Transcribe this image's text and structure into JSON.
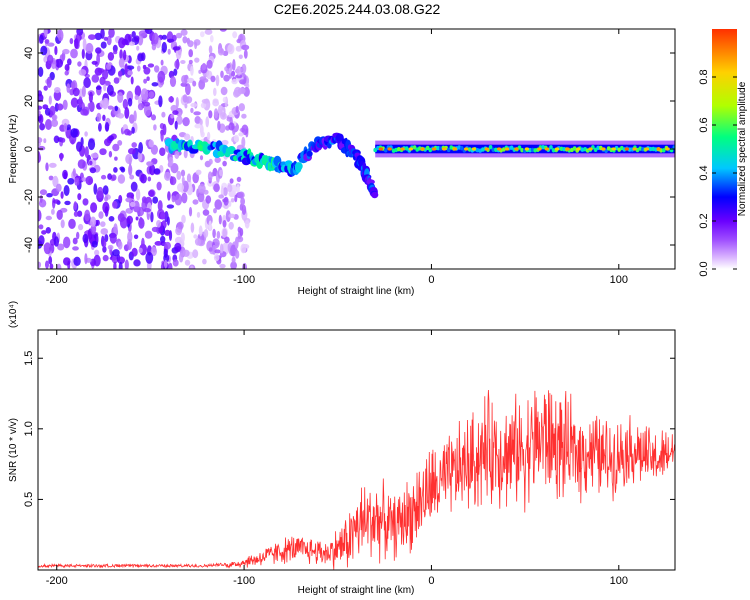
{
  "title": "C2E6.2025.244.03.08.G22",
  "chart_data": [
    {
      "type": "heatmap",
      "xlabel": "Height of straight line (km)",
      "ylabel": "Frequency (Hz)",
      "xlim": [
        -210,
        130
      ],
      "ylim": [
        -50,
        50
      ],
      "xticks": [
        -200,
        -100,
        0,
        100
      ],
      "yticks": [
        -40,
        -20,
        0,
        20,
        40
      ],
      "colorbar": {
        "label": "Normalized spectral amplitude",
        "range": [
          0,
          1
        ],
        "ticks": [
          "0.0",
          "0.2",
          "0.4",
          "0.6",
          "0.8"
        ],
        "colors": [
          "#ffffff",
          "#d9b3ff",
          "#a050ff",
          "#6a00ff",
          "#0000ff",
          "#00c8ff",
          "#00ff80",
          "#b0ff00",
          "#ffd000",
          "#ff3000"
        ]
      },
      "features": [
        {
          "region": "diffuse noise",
          "x_range": [
            -210,
            -110
          ],
          "freq_range": [
            -50,
            50
          ],
          "amplitude": 0.15
        },
        {
          "region": "carrier line",
          "x": [
            -140,
            -120,
            -100,
            -90,
            -80,
            -70
          ],
          "freq": [
            2,
            1,
            -3,
            -5,
            -7,
            -9
          ],
          "amplitude": 0.45
        },
        {
          "region": "disturbed carrier",
          "x": [
            -70,
            -60,
            -50,
            -40,
            -35,
            -30
          ],
          "freq": [
            -4,
            2,
            4,
            -3,
            -10,
            -20
          ],
          "amplitude": 0.3
        },
        {
          "region": "stable carrier",
          "x_range": [
            -30,
            130
          ],
          "freq": 0,
          "amplitude": 0.95
        }
      ]
    },
    {
      "type": "line",
      "xlabel": "Height of straight line (km)",
      "ylabel": "SNR (10 * v/v)",
      "y_multiplier": "(x10⁴)",
      "xlim": [
        -210,
        130
      ],
      "ylim": [
        0,
        1.7
      ],
      "xticks": [
        -200,
        -100,
        0,
        100
      ],
      "yticks": [
        0.5,
        1.0,
        1.5
      ],
      "ytick_labels": [
        "0.5",
        "1.0",
        "1.5"
      ],
      "series": [
        {
          "color": "#ff3030",
          "x": [
            -210,
            -150,
            -120,
            -105,
            -95,
            -85,
            -75,
            -65,
            -55,
            -45,
            -40,
            -35,
            -30,
            -25,
            -20,
            -15,
            -10,
            -5,
            0,
            5,
            10,
            15,
            20,
            25,
            30,
            35,
            40,
            45,
            50,
            55,
            60,
            65,
            70,
            75,
            80,
            85,
            90,
            95,
            100,
            105,
            110,
            115,
            120,
            125,
            130
          ],
          "y": [
            0.02,
            0.02,
            0.02,
            0.04,
            0.07,
            0.11,
            0.15,
            0.14,
            0.12,
            0.2,
            0.3,
            0.34,
            0.37,
            0.34,
            0.3,
            0.36,
            0.42,
            0.5,
            0.58,
            0.6,
            0.66,
            0.72,
            0.75,
            0.8,
            0.85,
            0.86,
            0.82,
            0.84,
            0.86,
            0.9,
            0.95,
            0.9,
            0.86,
            0.84,
            0.82,
            0.85,
            0.8,
            0.79,
            0.82,
            0.86,
            0.84,
            0.8,
            0.78,
            0.8,
            0.86
          ],
          "noise": [
            0,
            0,
            0,
            0.03,
            0.05,
            0.08,
            0.1,
            0.1,
            0.1,
            0.2,
            0.28,
            0.3,
            0.3,
            0.25,
            0.22,
            0.25,
            0.28,
            0.3,
            0.3,
            0.3,
            0.3,
            0.32,
            0.35,
            0.38,
            0.4,
            0.4,
            0.38,
            0.38,
            0.4,
            0.42,
            0.45,
            0.4,
            0.38,
            0.35,
            0.32,
            0.3,
            0.3,
            0.28,
            0.25,
            0.25,
            0.25,
            0.22,
            0.2,
            0.2,
            0.15
          ]
        }
      ]
    }
  ]
}
